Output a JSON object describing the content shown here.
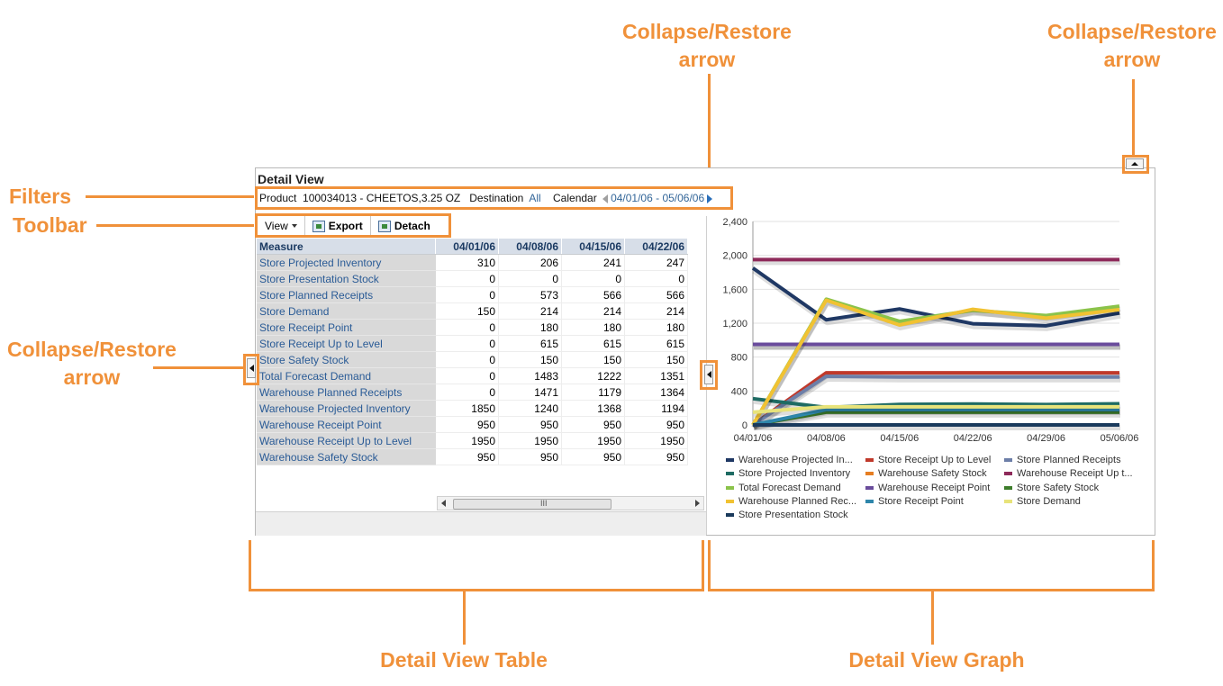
{
  "annotations": {
    "collapse_restore_mid": "Collapse/Restore\narrow",
    "collapse_restore_right": "Collapse/Restore\narrow",
    "filters": "Filters",
    "toolbar": "Toolbar",
    "collapse_restore_left": "Collapse/Restore\narrow",
    "detail_view_table": "Detail View Table",
    "detail_view_graph": "Detail View Graph",
    "color": "#f0913a"
  },
  "panel": {
    "title": "Detail View",
    "filters": {
      "product_label": "Product",
      "product_value": "100034013 - CHEETOS,3.25 OZ",
      "destination_label": "Destination",
      "destination_value": "All",
      "calendar_label": "Calendar",
      "calendar_value": "04/01/06 - 05/06/06"
    },
    "toolbar": {
      "view_label": "View",
      "export_label": "Export",
      "detach_label": "Detach"
    },
    "table": {
      "header_measure": "Measure",
      "columns": [
        "04/01/06",
        "04/08/06",
        "04/15/06",
        "04/22/06"
      ],
      "rows": [
        {
          "measure": "Store Projected Inventory",
          "values": [
            "310",
            "206",
            "241",
            "247"
          ]
        },
        {
          "measure": "Store Presentation Stock",
          "values": [
            "0",
            "0",
            "0",
            "0"
          ]
        },
        {
          "measure": "Store Planned Receipts",
          "values": [
            "0",
            "573",
            "566",
            "566"
          ]
        },
        {
          "measure": "Store Demand",
          "values": [
            "150",
            "214",
            "214",
            "214"
          ]
        },
        {
          "measure": "Store Receipt Point",
          "values": [
            "0",
            "180",
            "180",
            "180"
          ]
        },
        {
          "measure": "Store Receipt Up to Level",
          "values": [
            "0",
            "615",
            "615",
            "615"
          ]
        },
        {
          "measure": "Store Safety Stock",
          "values": [
            "0",
            "150",
            "150",
            "150"
          ]
        },
        {
          "measure": "Total Forecast Demand",
          "values": [
            "0",
            "1483",
            "1222",
            "1351"
          ]
        },
        {
          "measure": "Warehouse Planned Receipts",
          "values": [
            "0",
            "1471",
            "1179",
            "1364"
          ]
        },
        {
          "measure": "Warehouse Projected Inventory",
          "values": [
            "1850",
            "1240",
            "1368",
            "1194"
          ]
        },
        {
          "measure": "Warehouse Receipt Point",
          "values": [
            "950",
            "950",
            "950",
            "950"
          ]
        },
        {
          "measure": "Warehouse Receipt Up to Level",
          "values": [
            "1950",
            "1950",
            "1950",
            "1950"
          ]
        },
        {
          "measure": "Warehouse Safety Stock",
          "values": [
            "950",
            "950",
            "950",
            "950"
          ]
        }
      ],
      "scroll_grip": "III"
    }
  },
  "chart_data": {
    "type": "line",
    "x": [
      "04/01/06",
      "04/08/06",
      "04/15/06",
      "04/22/06",
      "04/29/06",
      "05/06/06"
    ],
    "ylim": [
      0,
      2400
    ],
    "yticks": [
      "2,400",
      "2,000",
      "1,600",
      "1,200",
      "800",
      "400",
      "0"
    ],
    "grid": true,
    "legend_position": "bottom",
    "series": [
      {
        "name": "Warehouse Projected In...",
        "color": "#1f3864",
        "values": [
          1850,
          1240,
          1368,
          1194,
          1170,
          1320
        ]
      },
      {
        "name": "Store Receipt Up to Level",
        "color": "#c0392b",
        "values": [
          0,
          615,
          615,
          615,
          615,
          615
        ]
      },
      {
        "name": "Store Planned Receipts",
        "color": "#6d7fa8",
        "values": [
          0,
          573,
          566,
          566,
          566,
          566
        ]
      },
      {
        "name": "Store Projected Inventory",
        "color": "#1e6b63",
        "values": [
          310,
          206,
          241,
          247,
          240,
          250
        ]
      },
      {
        "name": "Warehouse Safety Stock",
        "color": "#e67e22",
        "values": [
          950,
          950,
          950,
          950,
          950,
          950
        ]
      },
      {
        "name": "Warehouse Receipt Up t...",
        "color": "#8e2a5a",
        "values": [
          1950,
          1950,
          1950,
          1950,
          1950,
          1950
        ]
      },
      {
        "name": "Total Forecast Demand",
        "color": "#8bc34a",
        "values": [
          0,
          1483,
          1222,
          1351,
          1290,
          1400
        ]
      },
      {
        "name": "Warehouse Receipt Point",
        "color": "#6a4c9c",
        "values": [
          950,
          950,
          950,
          950,
          950,
          950
        ]
      },
      {
        "name": "Store Safety Stock",
        "color": "#3e7d2b",
        "values": [
          0,
          150,
          150,
          150,
          150,
          150
        ]
      },
      {
        "name": "Warehouse Planned Rec...",
        "color": "#f1c232",
        "values": [
          0,
          1471,
          1179,
          1364,
          1260,
          1360
        ]
      },
      {
        "name": "Store Receipt Point",
        "color": "#2e86ab",
        "values": [
          0,
          180,
          180,
          180,
          180,
          180
        ]
      },
      {
        "name": "Store Demand",
        "color": "#e8e37a",
        "values": [
          150,
          214,
          214,
          214,
          214,
          214
        ]
      },
      {
        "name": "Store Presentation Stock",
        "color": "#1a3a5c",
        "values": [
          0,
          0,
          0,
          0,
          0,
          0
        ]
      }
    ]
  }
}
